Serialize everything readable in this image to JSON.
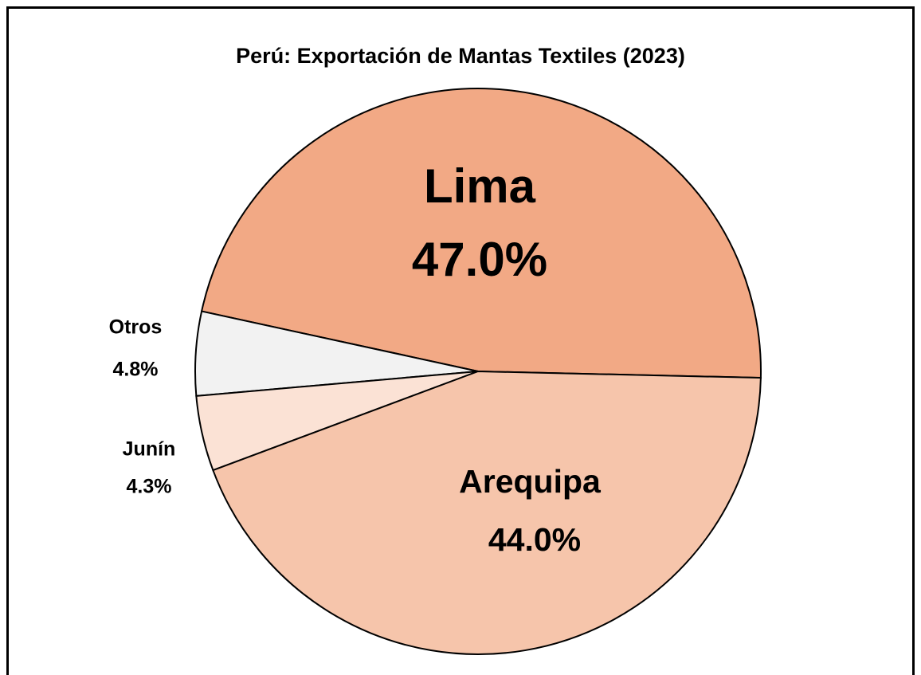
{
  "chart_data": {
    "type": "pie",
    "title": "Perú: Exportación de Mantas Textiles (2023)",
    "categories": [
      "Lima",
      "Otros",
      "Junín",
      "Arequipa"
    ],
    "values": [
      47.0,
      4.8,
      4.3,
      44.0
    ],
    "value_labels": [
      "47.0%",
      "4.8%",
      "4.3%",
      "44.0%"
    ],
    "colors": [
      "#f2a985",
      "#f2f2f2",
      "#fbe2d5",
      "#f6c5ab"
    ]
  }
}
